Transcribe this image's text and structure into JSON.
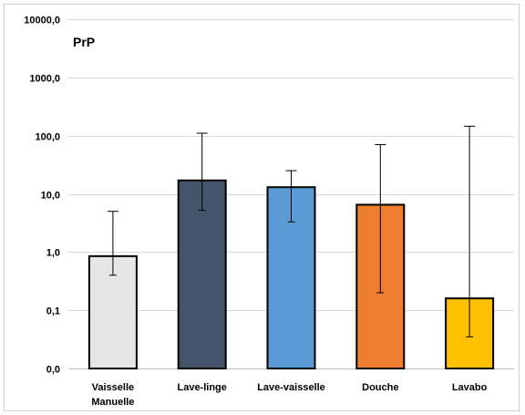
{
  "chart_data": {
    "type": "bar",
    "title": "PrP",
    "yscale": "log",
    "ylim": [
      0.01,
      10000
    ],
    "yticks": [
      {
        "value": 0.01,
        "label": "0,0"
      },
      {
        "value": 0.1,
        "label": "0,1"
      },
      {
        "value": 1,
        "label": "1,0"
      },
      {
        "value": 10,
        "label": "10,0"
      },
      {
        "value": 100,
        "label": "100,0"
      },
      {
        "value": 1000,
        "label": "1000,0"
      },
      {
        "value": 10000,
        "label": "10000,0"
      }
    ],
    "grid": true,
    "categories": [
      {
        "lines": [
          "Vaisselle",
          "Manuelle"
        ]
      },
      {
        "lines": [
          "Lave-linge"
        ]
      },
      {
        "lines": [
          "Lave-vaisselle"
        ]
      },
      {
        "lines": [
          "Douche"
        ]
      },
      {
        "lines": [
          "Lavabo"
        ]
      }
    ],
    "values": [
      0.85,
      17,
      13,
      6.5,
      0.16
    ],
    "error_high": [
      5,
      110,
      25,
      70,
      145
    ],
    "error_low": [
      0.4,
      5.2,
      3.3,
      0.2,
      0.035
    ],
    "colors": [
      "#e6e6e6",
      "#44546a",
      "#5b9bd5",
      "#ed7d31",
      "#ffc000"
    ]
  }
}
